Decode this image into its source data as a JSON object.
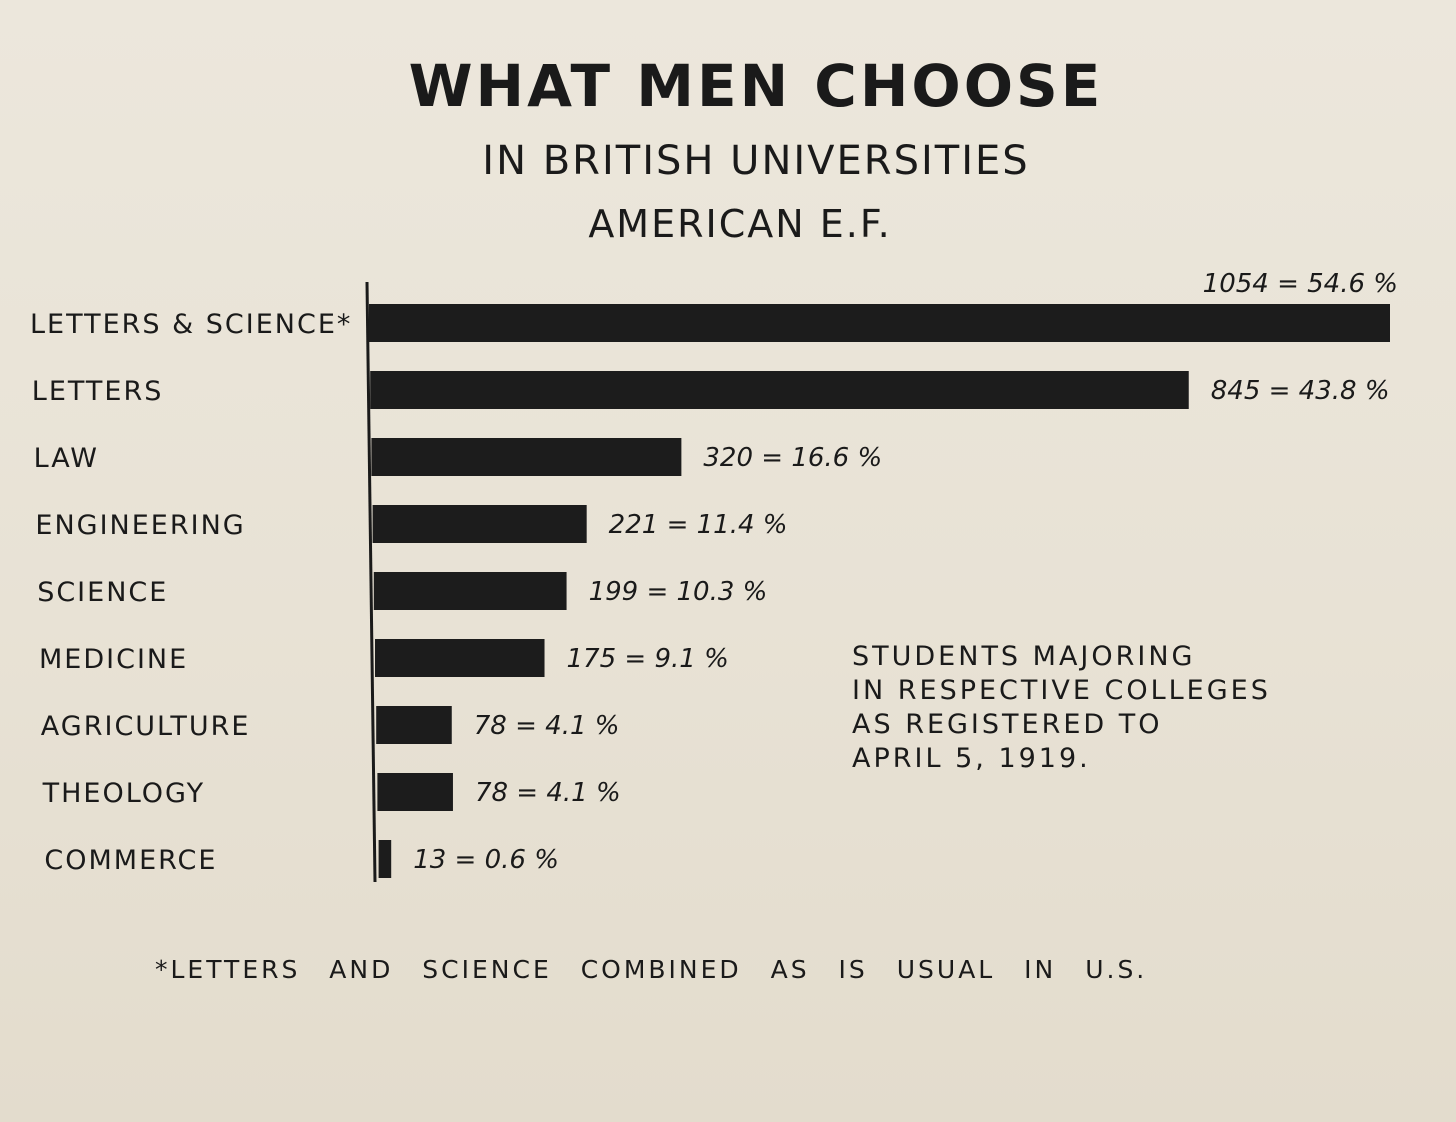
{
  "chart_data": {
    "type": "bar",
    "orientation": "horizontal",
    "title": "WHAT MEN CHOOSE",
    "subtitle": "IN BRITISH UNIVERSITIES",
    "subtitle2": "AMERICAN E.F.",
    "categories": [
      "LETTERS & SCIENCE*",
      "LETTERS",
      "LAW",
      "ENGINEERING",
      "SCIENCE",
      "MEDICINE",
      "AGRICULTURE",
      "THEOLOGY",
      "COMMERCE"
    ],
    "values": [
      1054,
      845,
      320,
      221,
      199,
      175,
      78,
      78,
      13
    ],
    "value_labels": [
      "1054 = 54.6 %",
      "845 = 43.8 %",
      "320 = 16.6 %",
      "221 = 11.4 %",
      "199 = 10.3 %",
      "175 = 9.1 %",
      "78 = 4.1 %",
      "78 = 4.1 %",
      "13 = 0.6 %"
    ],
    "xlim": [
      0,
      1054
    ],
    "xlabel": "",
    "ylabel": "",
    "grid": false,
    "legend": "none",
    "bar_color": "#1c1c1c"
  },
  "annotation": {
    "lines": [
      "STUDENTS MAJORING",
      "IN RESPECTIVE COLLEGES",
      "AS REGISTERED TO",
      "APRIL 5, 1919."
    ]
  },
  "footnote": "*LETTERS AND SCIENCE COMBINED AS IS USUAL IN U.S."
}
